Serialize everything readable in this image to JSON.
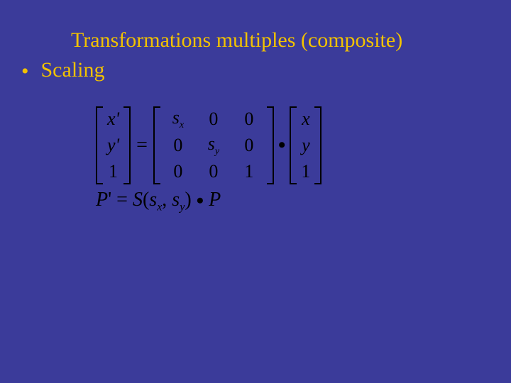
{
  "slide": {
    "background_color": "#3b3b9a",
    "text_color": "#f2c200",
    "title": "Transformations multiples (composite)",
    "title_fontsize": 30,
    "bullet": "Scaling",
    "bullet_fontsize": 30,
    "font_family": "Times New Roman"
  },
  "equation": {
    "text_color": "#000000",
    "lhs_vector": [
      "x'",
      "y'",
      "1"
    ],
    "matrix": [
      [
        "s_x",
        "0",
        "0"
      ],
      [
        "0",
        "s_y",
        "0"
      ],
      [
        "0",
        "0",
        "1"
      ]
    ],
    "rhs_vector": [
      "x",
      "y",
      "1"
    ],
    "operator_between": "•",
    "equals": "=",
    "line2": "P' = S(s_x, s_y) • P",
    "fontsize": 26
  }
}
